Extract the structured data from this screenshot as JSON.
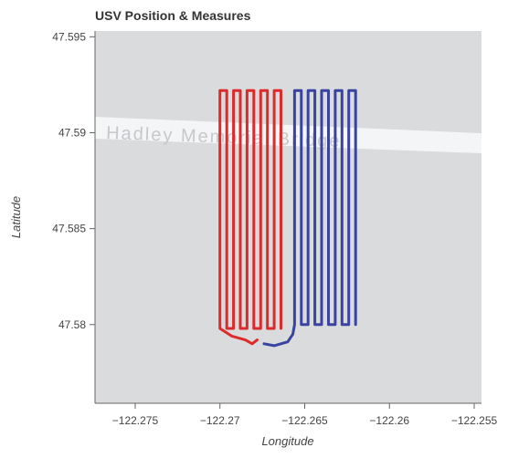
{
  "chart_data": {
    "type": "line",
    "title": "USV Position & Measures",
    "xlabel": "Longitude",
    "ylabel": "Latitude",
    "map_label": "Hadley Memorial Bridge",
    "xlim": [
      -122.27737,
      -122.25457
    ],
    "ylim": [
      47.5759,
      47.5953
    ],
    "xticks": [
      {
        "value": -122.275,
        "label": "−122.275"
      },
      {
        "value": -122.27,
        "label": "−122.27"
      },
      {
        "value": -122.265,
        "label": "−122.265"
      },
      {
        "value": -122.26,
        "label": "−122.26"
      },
      {
        "value": -122.255,
        "label": "−122.255"
      }
    ],
    "yticks": [
      47.595,
      47.59,
      47.585,
      47.58
    ],
    "series": [
      {
        "color": "#dd2a2a",
        "x": [
          -122.2678,
          -122.2681,
          -122.2685,
          -122.2693,
          -122.27,
          -122.27,
          -122.2696,
          -122.2696,
          -122.2692,
          -122.2692,
          -122.2688,
          -122.2688,
          -122.2684,
          -122.2684,
          -122.268,
          -122.268,
          -122.2676,
          -122.2676,
          -122.2672,
          -122.2672,
          -122.2668,
          -122.2668,
          -122.2664,
          -122.2664
        ],
        "values": [
          47.5792,
          47.579,
          47.5792,
          47.5794,
          47.5798,
          47.5922,
          47.5922,
          47.5798,
          47.5798,
          47.5922,
          47.5922,
          47.5798,
          47.5798,
          47.5922,
          47.5922,
          47.5798,
          47.5798,
          47.5922,
          47.5922,
          47.5798,
          47.5798,
          47.5922,
          47.5922,
          47.5798
        ]
      },
      {
        "color": "#3a44a0",
        "x": [
          -122.2674,
          -122.2668,
          -122.266,
          -122.2657,
          -122.2656,
          -122.2656,
          -122.2652,
          -122.2652,
          -122.2648,
          -122.2648,
          -122.2644,
          -122.2644,
          -122.264,
          -122.264,
          -122.2636,
          -122.2636,
          -122.2632,
          -122.2632,
          -122.2628,
          -122.2628,
          -122.2624,
          -122.2624,
          -122.262,
          -122.262
        ],
        "values": [
          47.579,
          47.5789,
          47.5791,
          47.5795,
          47.58,
          47.5922,
          47.5922,
          47.58,
          47.58,
          47.5922,
          47.5922,
          47.58,
          47.58,
          47.5922,
          47.5922,
          47.58,
          47.58,
          47.5922,
          47.5922,
          47.58,
          47.58,
          47.5922,
          47.5922,
          47.58
        ]
      }
    ]
  }
}
